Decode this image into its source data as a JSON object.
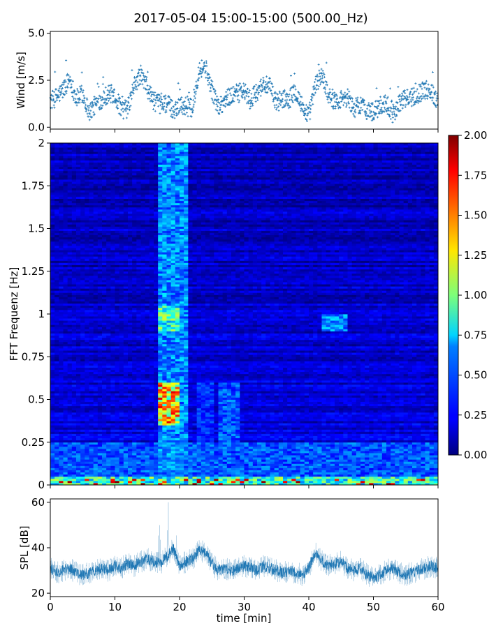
{
  "title": "2017-05-04 15:00-15:00 (500.00_Hz)",
  "chart_data": [
    {
      "type": "scatter",
      "panel": "wind",
      "ylabel": "Wind [m/s]",
      "xlim": [
        0,
        60
      ],
      "ylim": [
        -0.1,
        5.1
      ],
      "yticks": [
        0.0,
        2.5,
        5.0
      ],
      "yticklabels": [
        "0.0",
        "2.5",
        "5.0"
      ],
      "marker": "+",
      "color": "#1f77b4",
      "x": [
        0,
        1,
        2,
        3,
        4,
        5,
        6,
        7,
        8,
        9,
        10,
        11,
        12,
        13,
        14,
        15,
        16,
        17,
        18,
        19,
        20,
        21,
        22,
        23,
        24,
        25,
        26,
        27,
        28,
        29,
        30,
        31,
        32,
        33,
        34,
        35,
        36,
        37,
        38,
        39,
        40,
        41,
        42,
        43,
        44,
        45,
        46,
        47,
        48,
        49,
        50,
        51,
        52,
        53,
        54,
        55,
        56,
        57,
        58,
        59,
        60
      ],
      "y": [
        1.4,
        1.6,
        2.0,
        2.6,
        1.5,
        1.8,
        0.8,
        1.2,
        1.5,
        1.8,
        1.7,
        0.9,
        1.0,
        2.2,
        2.8,
        2.1,
        1.4,
        1.2,
        1.3,
        0.9,
        1.2,
        1.1,
        1.0,
        3.1,
        3.2,
        2.0,
        1.1,
        1.4,
        1.7,
        1.8,
        1.9,
        1.4,
        1.9,
        2.3,
        2.1,
        1.3,
        1.5,
        1.5,
        1.9,
        1.1,
        0.6,
        2.2,
        2.8,
        1.8,
        1.4,
        1.5,
        1.6,
        1.0,
        1.2,
        0.9,
        0.8,
        1.1,
        1.3,
        0.7,
        1.3,
        1.5,
        1.6,
        1.8,
        2.0,
        1.9,
        1.4
      ]
    },
    {
      "type": "heatmap",
      "panel": "spectrogram",
      "ylabel": "FFT Frequenz [Hz]",
      "xlim": [
        0,
        60
      ],
      "ylim": [
        0,
        2
      ],
      "yticks": [
        0,
        0.25,
        0.5,
        0.75,
        1,
        1.25,
        1.5,
        1.75,
        2
      ],
      "yticklabels": [
        "0",
        "0.25",
        "0.5",
        "0.75",
        "1",
        "1.25",
        "1.5",
        "1.75",
        "2"
      ],
      "colormap": "jet",
      "clim": [
        0.0,
        2.0
      ],
      "colorbar_ticks": [
        "0.00",
        "0.25",
        "0.50",
        "0.75",
        "1.00",
        "1.25",
        "1.50",
        "1.75",
        "2.00"
      ],
      "base_level": 0.2,
      "features": [
        {
          "x": [
            16.5,
            21.5
          ],
          "f": [
            0.0,
            2.0
          ],
          "value": 0.55
        },
        {
          "x": [
            16.5,
            20.0
          ],
          "f": [
            0.35,
            0.6
          ],
          "value": 1.4
        },
        {
          "x": [
            17.0,
            20.0
          ],
          "f": [
            0.9,
            1.05
          ],
          "value": 0.9
        },
        {
          "x": [
            22.5,
            25.0
          ],
          "f": [
            0.0,
            0.6
          ],
          "value": 0.35
        },
        {
          "x": [
            26.0,
            29.0
          ],
          "f": [
            0.2,
            0.6
          ],
          "value": 0.45
        },
        {
          "x": [
            42.0,
            46.0
          ],
          "f": [
            0.9,
            1.0
          ],
          "value": 0.55
        },
        {
          "x": [
            0.0,
            60.0
          ],
          "f": [
            0.0,
            0.05
          ],
          "value": 0.9
        },
        {
          "x": [
            0.0,
            60.0
          ],
          "f": [
            0.05,
            0.25
          ],
          "value": 0.45
        }
      ]
    },
    {
      "type": "line",
      "panel": "spl",
      "xlabel": "time [min]",
      "ylabel": "SPL [dB]",
      "xlim": [
        0,
        60
      ],
      "ylim": [
        18.5,
        61.5
      ],
      "xticks": [
        0,
        10,
        20,
        30,
        40,
        50,
        60
      ],
      "xticklabels": [
        "0",
        "10",
        "20",
        "30",
        "40",
        "50",
        "60"
      ],
      "yticks": [
        20,
        40,
        60
      ],
      "yticklabels": [
        "20",
        "40",
        "60"
      ],
      "color": "#1f77b4",
      "x": [
        0,
        1,
        2,
        3,
        4,
        5,
        6,
        7,
        8,
        9,
        10,
        11,
        12,
        13,
        14,
        15,
        16,
        17,
        18,
        19,
        20,
        21,
        22,
        23,
        24,
        25,
        26,
        27,
        28,
        29,
        30,
        31,
        32,
        33,
        34,
        35,
        36,
        37,
        38,
        39,
        40,
        41,
        42,
        43,
        44,
        45,
        46,
        47,
        48,
        49,
        50,
        51,
        52,
        53,
        54,
        55,
        56,
        57,
        58,
        59,
        60
      ],
      "y": [
        31,
        29,
        30,
        31,
        29,
        28,
        29,
        30,
        31,
        30,
        32,
        31,
        33,
        32,
        34,
        35,
        34,
        33,
        36,
        40,
        32,
        34,
        35,
        39,
        38,
        33,
        30,
        31,
        30,
        31,
        32,
        31,
        30,
        32,
        31,
        30,
        29,
        30,
        29,
        28,
        31,
        38,
        34,
        32,
        33,
        34,
        31,
        30,
        31,
        28,
        27,
        28,
        30,
        31,
        29,
        28,
        29,
        30,
        31,
        32,
        31
      ]
    }
  ]
}
